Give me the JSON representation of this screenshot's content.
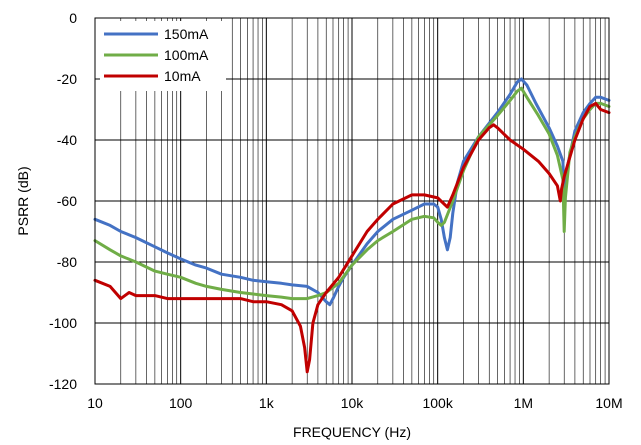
{
  "chart_data": {
    "type": "line",
    "title": "",
    "xlabel": "FREQUENCY (Hz)",
    "ylabel": "PSRR (dB)",
    "xscale": "log",
    "xlim": [
      10,
      10000000
    ],
    "ylim": [
      -120,
      0
    ],
    "grid": true,
    "legend_position": "top-left",
    "x_ticks": [
      10,
      100,
      1000,
      10000,
      100000,
      1000000,
      10000000
    ],
    "x_tick_labels": [
      "10",
      "100",
      "1k",
      "10k",
      "100k",
      "1M",
      "10M"
    ],
    "y_ticks": [
      0,
      -20,
      -40,
      -60,
      -80,
      -100,
      -120
    ],
    "y_tick_labels": [
      "0",
      "-20",
      "-40",
      "-60",
      "-80",
      "-100",
      "-120"
    ],
    "series": [
      {
        "name": "150mA",
        "color": "#4472C4",
        "points": [
          [
            10,
            -66
          ],
          [
            15,
            -68
          ],
          [
            20,
            -70
          ],
          [
            30,
            -72
          ],
          [
            50,
            -75
          ],
          [
            70,
            -77
          ],
          [
            100,
            -79
          ],
          [
            150,
            -81
          ],
          [
            200,
            -82
          ],
          [
            300,
            -84
          ],
          [
            500,
            -85
          ],
          [
            700,
            -86
          ],
          [
            1000,
            -86.5
          ],
          [
            1500,
            -87
          ],
          [
            2000,
            -87.5
          ],
          [
            3000,
            -88
          ],
          [
            4000,
            -90
          ],
          [
            5000,
            -93
          ],
          [
            5500,
            -94
          ],
          [
            6000,
            -92
          ],
          [
            7000,
            -88
          ],
          [
            8000,
            -85
          ],
          [
            10000,
            -81
          ],
          [
            15000,
            -74
          ],
          [
            20000,
            -70
          ],
          [
            30000,
            -66
          ],
          [
            50000,
            -63
          ],
          [
            70000,
            -61
          ],
          [
            90000,
            -61
          ],
          [
            100000,
            -62
          ],
          [
            110000,
            -66
          ],
          [
            120000,
            -72
          ],
          [
            130000,
            -76
          ],
          [
            140000,
            -72
          ],
          [
            150000,
            -64
          ],
          [
            170000,
            -54
          ],
          [
            200000,
            -47
          ],
          [
            300000,
            -39
          ],
          [
            500000,
            -31
          ],
          [
            700000,
            -25
          ],
          [
            850000,
            -21
          ],
          [
            950000,
            -20
          ],
          [
            1100000,
            -22
          ],
          [
            1400000,
            -28
          ],
          [
            2000000,
            -36
          ],
          [
            2500000,
            -42
          ],
          [
            2900000,
            -47
          ],
          [
            3000000,
            -58
          ],
          [
            3200000,
            -50
          ],
          [
            4000000,
            -37
          ],
          [
            5000000,
            -31
          ],
          [
            6000000,
            -28
          ],
          [
            7000000,
            -26
          ],
          [
            8000000,
            -26
          ],
          [
            10000000,
            -27
          ]
        ]
      },
      {
        "name": "100mA",
        "color": "#70AD47",
        "points": [
          [
            10,
            -73
          ],
          [
            15,
            -76
          ],
          [
            20,
            -78
          ],
          [
            30,
            -80
          ],
          [
            50,
            -83
          ],
          [
            70,
            -84
          ],
          [
            100,
            -85
          ],
          [
            150,
            -87
          ],
          [
            200,
            -88
          ],
          [
            300,
            -89
          ],
          [
            500,
            -90
          ],
          [
            700,
            -90.5
          ],
          [
            1000,
            -91
          ],
          [
            1500,
            -91.5
          ],
          [
            2000,
            -92
          ],
          [
            3000,
            -92
          ],
          [
            4000,
            -91
          ],
          [
            5000,
            -90
          ],
          [
            7000,
            -87
          ],
          [
            10000,
            -81
          ],
          [
            15000,
            -76
          ],
          [
            20000,
            -73
          ],
          [
            30000,
            -70
          ],
          [
            50000,
            -66
          ],
          [
            70000,
            -65
          ],
          [
            90000,
            -65.5
          ],
          [
            100000,
            -67
          ],
          [
            110000,
            -68
          ],
          [
            120000,
            -67
          ],
          [
            150000,
            -60
          ],
          [
            200000,
            -50
          ],
          [
            300000,
            -39
          ],
          [
            500000,
            -32
          ],
          [
            700000,
            -27
          ],
          [
            850000,
            -24
          ],
          [
            950000,
            -23
          ],
          [
            1100000,
            -26
          ],
          [
            1500000,
            -32
          ],
          [
            2000000,
            -38
          ],
          [
            2500000,
            -45
          ],
          [
            2900000,
            -53
          ],
          [
            3000000,
            -70
          ],
          [
            3100000,
            -59
          ],
          [
            3500000,
            -44
          ],
          [
            4000000,
            -39
          ],
          [
            5000000,
            -33
          ],
          [
            6000000,
            -30
          ],
          [
            7000000,
            -28
          ],
          [
            8000000,
            -28
          ],
          [
            10000000,
            -29
          ]
        ]
      },
      {
        "name": "10mA",
        "color": "#C00000",
        "points": [
          [
            10,
            -86
          ],
          [
            15,
            -88
          ],
          [
            20,
            -92
          ],
          [
            25,
            -90
          ],
          [
            30,
            -91
          ],
          [
            50,
            -91
          ],
          [
            70,
            -92
          ],
          [
            100,
            -92
          ],
          [
            150,
            -92
          ],
          [
            200,
            -92
          ],
          [
            300,
            -92
          ],
          [
            500,
            -92
          ],
          [
            700,
            -93
          ],
          [
            1000,
            -93
          ],
          [
            1500,
            -94
          ],
          [
            2000,
            -96
          ],
          [
            2500,
            -101
          ],
          [
            2800,
            -108
          ],
          [
            3000,
            -116
          ],
          [
            3200,
            -112
          ],
          [
            3500,
            -100
          ],
          [
            4000,
            -94
          ],
          [
            5000,
            -90
          ],
          [
            7000,
            -85
          ],
          [
            10000,
            -78
          ],
          [
            15000,
            -70
          ],
          [
            20000,
            -66
          ],
          [
            30000,
            -61
          ],
          [
            50000,
            -58
          ],
          [
            70000,
            -58
          ],
          [
            100000,
            -59
          ],
          [
            130000,
            -62
          ],
          [
            150000,
            -58
          ],
          [
            200000,
            -49
          ],
          [
            300000,
            -40
          ],
          [
            400000,
            -36
          ],
          [
            450000,
            -35
          ],
          [
            500000,
            -36
          ],
          [
            700000,
            -40
          ],
          [
            1000000,
            -43
          ],
          [
            1500000,
            -47
          ],
          [
            2000000,
            -51
          ],
          [
            2500000,
            -55
          ],
          [
            2700000,
            -60
          ],
          [
            2800000,
            -56
          ],
          [
            3000000,
            -52
          ],
          [
            4000000,
            -40
          ],
          [
            5000000,
            -33
          ],
          [
            6000000,
            -29
          ],
          [
            7000000,
            -28
          ],
          [
            8000000,
            -30
          ],
          [
            10000000,
            -31
          ]
        ]
      }
    ]
  }
}
